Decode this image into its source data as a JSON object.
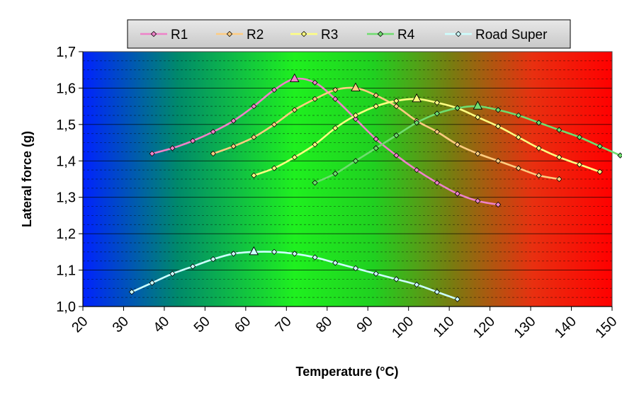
{
  "chart_data": {
    "type": "line",
    "xlabel": "Temperature (°C)",
    "ylabel": "Lateral force (g)",
    "xlim": [
      20,
      150
    ],
    "ylim": [
      1.0,
      1.7
    ],
    "x_ticks": [
      "20",
      "30",
      "40",
      "50",
      "60",
      "70",
      "80",
      "90",
      "100",
      "110",
      "120",
      "130",
      "140",
      "150"
    ],
    "y_ticks": [
      "1,0",
      "1,1",
      "1,2",
      "1,3",
      "1,4",
      "1,5",
      "1,6",
      "1,7"
    ],
    "grid": "horizontal dashed minor, solid major",
    "background": "horizontal gradient blue to green to red",
    "legend_position": "top",
    "series": [
      {
        "name": "R1",
        "color": "#ee82c8",
        "x": [
          37,
          42,
          47,
          52,
          57,
          62,
          67,
          72,
          77,
          82,
          87,
          92,
          97,
          102,
          107,
          112,
          117,
          122
        ],
        "y": [
          1.42,
          1.435,
          1.455,
          1.48,
          1.51,
          1.55,
          1.595,
          1.625,
          1.615,
          1.57,
          1.515,
          1.46,
          1.415,
          1.375,
          1.34,
          1.31,
          1.29,
          1.28
        ],
        "peak": {
          "x": 72,
          "y": 1.625
        }
      },
      {
        "name": "R2",
        "color": "#ffcc80",
        "x": [
          52,
          57,
          62,
          67,
          72,
          77,
          82,
          87,
          92,
          97,
          102,
          107,
          112,
          117,
          122,
          127,
          132,
          137
        ],
        "y": [
          1.42,
          1.44,
          1.465,
          1.5,
          1.54,
          1.57,
          1.595,
          1.6,
          1.58,
          1.55,
          1.51,
          1.48,
          1.445,
          1.42,
          1.4,
          1.38,
          1.36,
          1.35
        ],
        "peak": {
          "x": 87,
          "y": 1.6
        }
      },
      {
        "name": "R3",
        "color": "#ffff80",
        "x": [
          62,
          67,
          72,
          77,
          82,
          87,
          92,
          97,
          102,
          107,
          112,
          117,
          122,
          127,
          132,
          137,
          142,
          147
        ],
        "y": [
          1.36,
          1.38,
          1.41,
          1.445,
          1.49,
          1.525,
          1.55,
          1.565,
          1.57,
          1.56,
          1.545,
          1.52,
          1.495,
          1.465,
          1.435,
          1.41,
          1.39,
          1.37
        ],
        "peak": {
          "x": 102,
          "y": 1.57
        }
      },
      {
        "name": "R4",
        "color": "#6fdd6f",
        "x": [
          77,
          82,
          87,
          92,
          97,
          102,
          107,
          112,
          117,
          122,
          127,
          132,
          137,
          142,
          147,
          152
        ],
        "y": [
          1.34,
          1.365,
          1.4,
          1.435,
          1.47,
          1.505,
          1.53,
          1.545,
          1.55,
          1.54,
          1.525,
          1.505,
          1.485,
          1.465,
          1.44,
          1.415
        ],
        "peak": {
          "x": 117,
          "y": 1.55
        }
      },
      {
        "name": "Road Super",
        "color": "#ccffff",
        "x": [
          32,
          37,
          42,
          47,
          52,
          57,
          62,
          67,
          72,
          77,
          82,
          87,
          92,
          97,
          102,
          107,
          112
        ],
        "y": [
          1.04,
          1.065,
          1.09,
          1.11,
          1.13,
          1.145,
          1.15,
          1.15,
          1.145,
          1.135,
          1.12,
          1.105,
          1.09,
          1.075,
          1.06,
          1.04,
          1.02
        ],
        "peak": {
          "x": 62,
          "y": 1.15
        }
      }
    ]
  }
}
